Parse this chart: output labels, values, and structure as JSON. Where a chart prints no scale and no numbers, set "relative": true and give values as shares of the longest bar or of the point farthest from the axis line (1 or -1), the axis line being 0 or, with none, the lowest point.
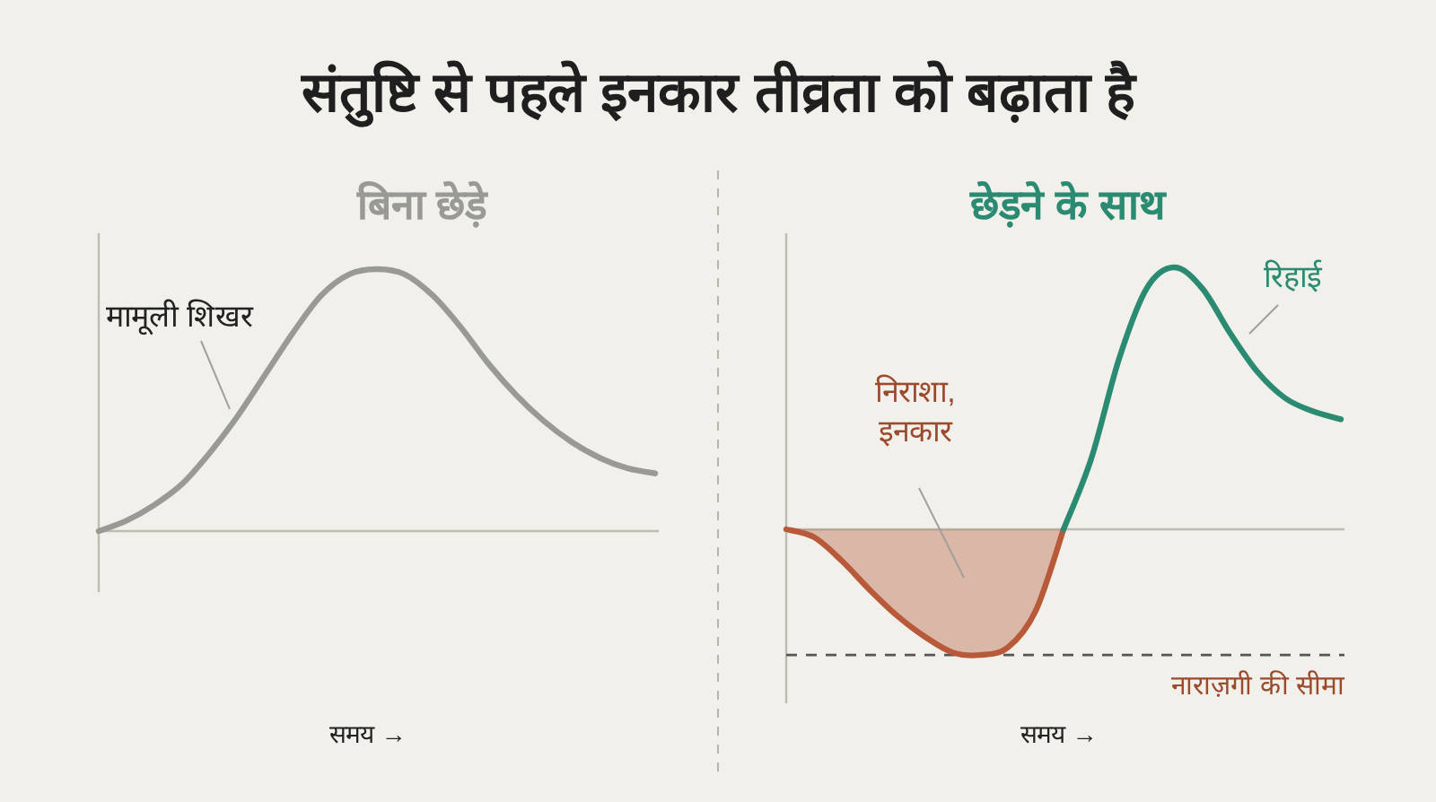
{
  "chart_data": [
    {
      "type": "line",
      "title": "संतुष्टि से पहले इनकार तीव्रता को बढ़ाता है",
      "subtitle": "बिना छेड़े",
      "xlabel": "समय →",
      "relative": true,
      "categories": [
        null,
        null,
        null,
        null,
        null,
        null,
        null,
        null,
        null,
        null,
        null,
        null,
        null,
        null,
        null,
        null,
        null,
        null,
        null,
        null,
        null
      ],
      "series": [
        {
          "color": "#9a9a94",
          "values": [
            0,
            0.04,
            0.1,
            0.18,
            0.3,
            0.44,
            0.6,
            0.76,
            0.9,
            0.98,
            1,
            0.98,
            0.9,
            0.78,
            0.64,
            0.52,
            0.42,
            0.34,
            0.28,
            0.24,
            0.22
          ]
        }
      ],
      "annotations": [
        "मामूली शिखर"
      ]
    },
    {
      "type": "line",
      "title": "छेड़ने के साथ",
      "xlabel": "समय →",
      "relative": true,
      "categories": [
        null,
        null,
        null,
        null,
        null,
        null,
        null,
        null,
        null,
        null,
        null,
        null,
        null,
        null,
        null,
        null,
        null,
        null,
        null,
        null,
        null
      ],
      "series": [
        {
          "type": "area",
          "color": "#b85a3a",
          "values": [
            0,
            -0.03,
            -0.12,
            -0.23,
            -0.33,
            -0.41,
            -0.47,
            -0.48,
            -0.45,
            -0.31,
            0,
            null,
            null,
            null,
            null,
            null,
            null,
            null,
            null,
            null,
            null
          ]
        },
        {
          "type": "line",
          "color": "#2a8a72",
          "values": [
            null,
            null,
            null,
            null,
            null,
            null,
            null,
            null,
            null,
            null,
            0,
            0.27,
            0.65,
            0.92,
            1,
            0.92,
            0.75,
            0.6,
            0.5,
            0.45,
            0.42
          ]
        }
      ],
      "ref_lines": [
        {
          "axis": "y",
          "value": -0.48,
          "label": "नाराज़गी की सीमा",
          "color": "#555555",
          "line_style": "dashed"
        }
      ],
      "annotations": [
        "निराशा, इनकार",
        "रिहाई"
      ]
    }
  ]
}
